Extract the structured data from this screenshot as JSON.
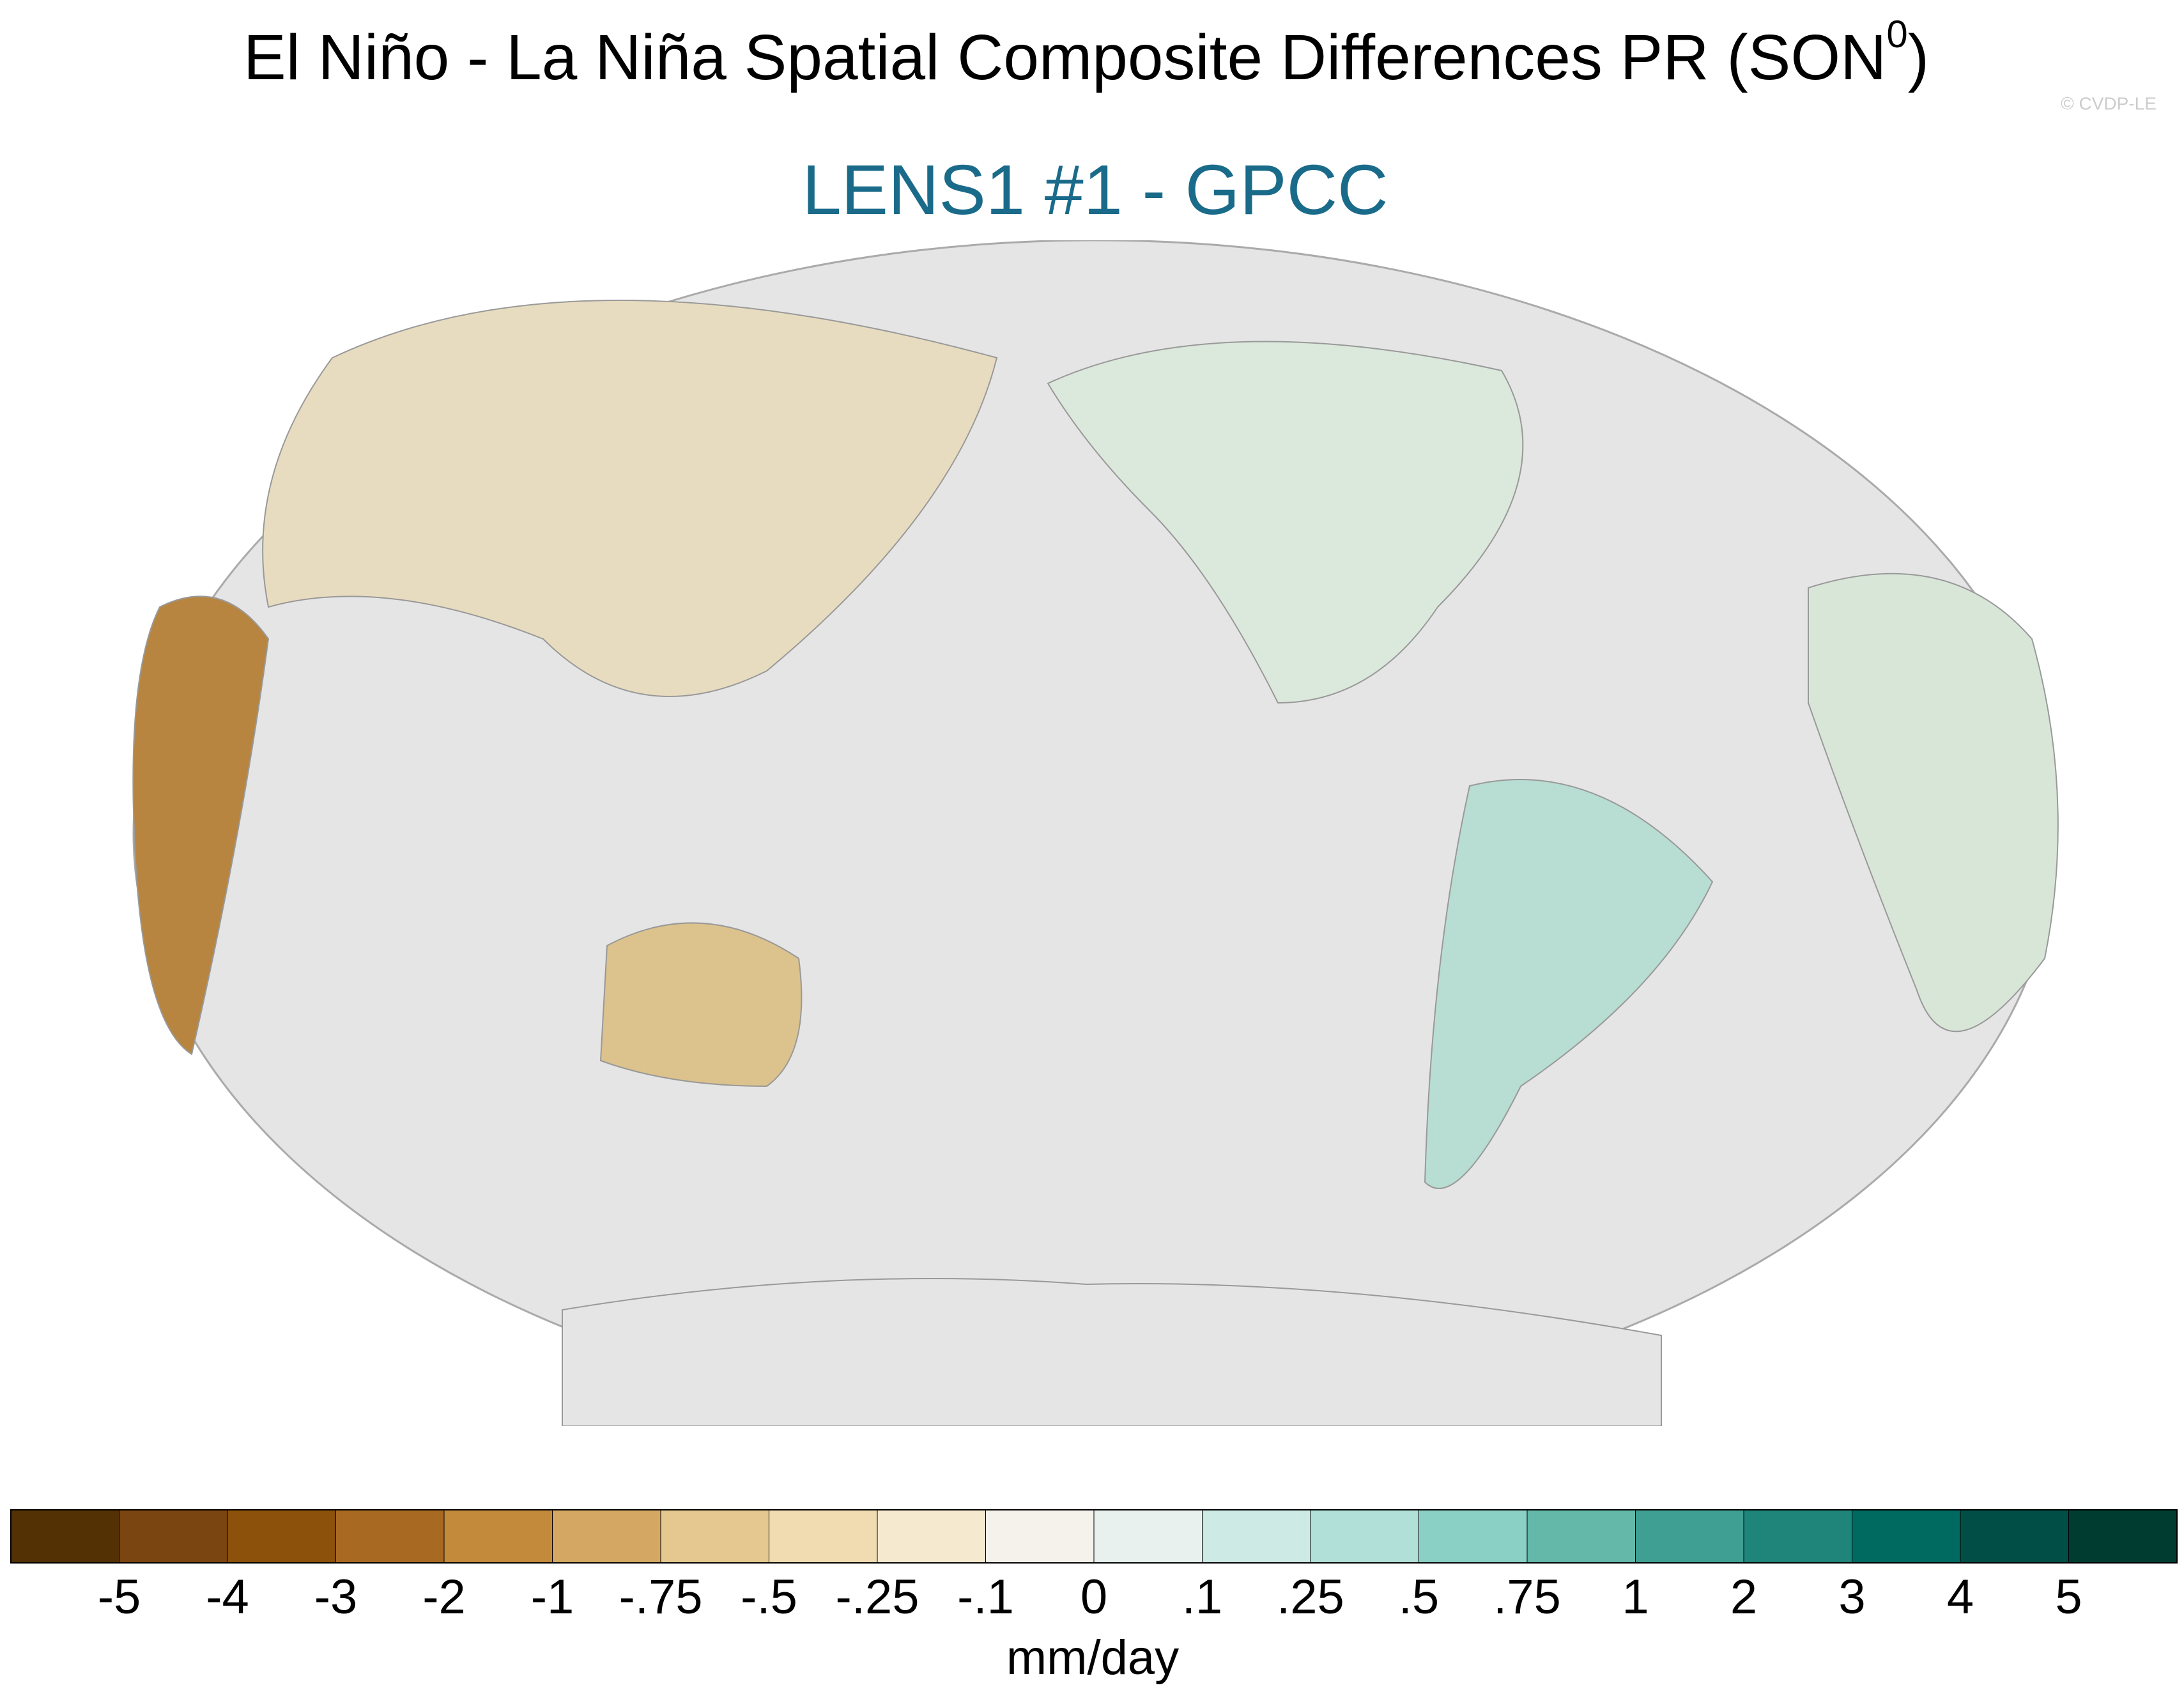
{
  "title": "El Niño - La Niña Spatial Composite Differences PR (SON",
  "title_superscript": "0",
  "title_end": ")",
  "subtitle": "LENS1 #1 - GPCC",
  "watermark": "© CVDP-LE",
  "colorbar": {
    "colors": [
      "#543005",
      "#7a4510",
      "#8c510a",
      "#a86a22",
      "#c48a3c",
      "#d4a862",
      "#e5c88f",
      "#f0dcb0",
      "#f5ead0",
      "#f5f2ec",
      "#e8f1ee",
      "#cdeae4",
      "#b0e0d8",
      "#8ad0c4",
      "#63b8aa",
      "#3f9f92",
      "#1f8479",
      "#006a60",
      "#004e45",
      "#003c30"
    ],
    "ticks": [
      -5,
      -4,
      -3,
      -2,
      -1,
      {
        "value": -0.75,
        "label": "-.75"
      },
      {
        "value": -0.5,
        "label": "-.5"
      },
      {
        "value": -0.25,
        "label": "-.25"
      },
      {
        "value": -0.1,
        "label": "-.1"
      },
      0,
      {
        "value": 0.1,
        "label": ".1"
      },
      {
        "value": 0.25,
        "label": ".25"
      },
      {
        "value": 0.5,
        "label": ".5"
      },
      {
        "value": 0.75,
        "label": ".75"
      },
      1,
      2,
      3,
      4,
      5
    ],
    "label": "mm/day"
  }
}
